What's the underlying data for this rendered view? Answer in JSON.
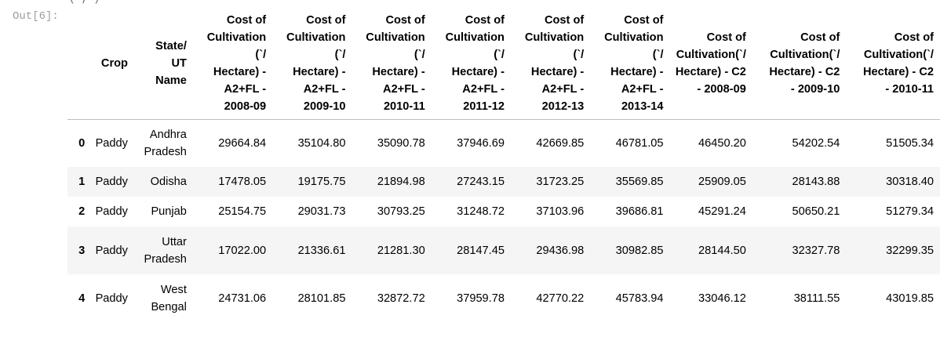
{
  "prompt": {
    "out_label": "Out[6]:",
    "top_fragment": "(  ,  )"
  },
  "dataframe": {
    "columns": [
      "",
      "Crop",
      "State/\nUT\nName",
      "Cost of\nCultivation\n(`/\nHectare) -\nA2+FL -\n2008-09",
      "Cost of\nCultivation\n(`/\nHectare) -\nA2+FL -\n2009-10",
      "Cost of\nCultivation\n(`/\nHectare) -\nA2+FL -\n2010-11",
      "Cost of\nCultivation\n(`/\nHectare) -\nA2+FL -\n2011-12",
      "Cost of\nCultivation\n(`/\nHectare) -\nA2+FL -\n2012-13",
      "Cost of\nCultivation\n(`/\nHectare) -\nA2+FL -\n2013-14",
      "Cost of\nCultivation(`/\nHectare) - C2\n- 2008-09",
      "Cost of\nCultivation(`/\nHectare) - C2\n- 2009-10",
      "Cost of\nCultivation(`/\nHectare) - C2\n- 2010-11"
    ],
    "rows": [
      {
        "index": "0",
        "crop": "Paddy",
        "state": "Andhra\nPradesh",
        "values": [
          "29664.84",
          "35104.80",
          "35090.78",
          "37946.69",
          "42669.85",
          "46781.05",
          "46450.20",
          "54202.54",
          "51505.34"
        ]
      },
      {
        "index": "1",
        "crop": "Paddy",
        "state": "Odisha",
        "values": [
          "17478.05",
          "19175.75",
          "21894.98",
          "27243.15",
          "31723.25",
          "35569.85",
          "25909.05",
          "28143.88",
          "30318.40"
        ]
      },
      {
        "index": "2",
        "crop": "Paddy",
        "state": "Punjab",
        "values": [
          "25154.75",
          "29031.73",
          "30793.25",
          "31248.72",
          "37103.96",
          "39686.81",
          "45291.24",
          "50650.21",
          "51279.34"
        ]
      },
      {
        "index": "3",
        "crop": "Paddy",
        "state": "Uttar\nPradesh",
        "values": [
          "17022.00",
          "21336.61",
          "21281.30",
          "28147.45",
          "29436.98",
          "30982.85",
          "28144.50",
          "32327.78",
          "32299.35"
        ]
      },
      {
        "index": "4",
        "crop": "Paddy",
        "state": "West\nBengal",
        "values": [
          "24731.06",
          "28101.85",
          "32872.72",
          "37959.78",
          "42770.22",
          "45783.94",
          "33046.12",
          "38111.55",
          "43019.85"
        ]
      }
    ]
  }
}
